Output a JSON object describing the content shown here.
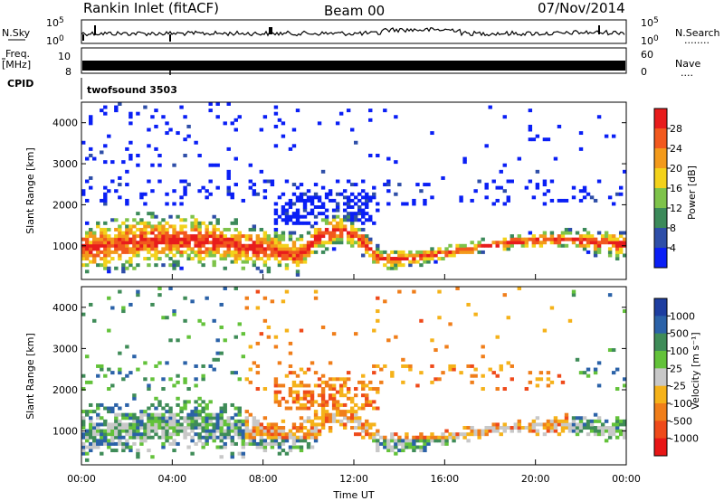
{
  "header": {
    "station": "Rankin Inlet (fitACF)",
    "beam": "Beam 00",
    "date": "07/Nov/2014"
  },
  "side_labels": {
    "nsky": "N.Sky",
    "nsearch": "N.Search",
    "nsearch_dots": "........",
    "freq": "Freq.",
    "freq_unit": "[MHz]",
    "nave": "Nave",
    "nave_dots": "....",
    "cpid": "CPID"
  },
  "top_panels": {
    "noise_ticks_left": [
      "10^5",
      "10^0"
    ],
    "noise_ticks_right": [
      "10^5",
      "10^0"
    ],
    "freq_ticks_left": [
      "10",
      "8"
    ],
    "nave_ticks_right": [
      "60",
      "0"
    ],
    "cpid_text": "twofsound 3503"
  },
  "chart_data": [
    {
      "type": "heatmap",
      "panel": "power",
      "ylabel": "Slant Range [km]",
      "y_ticks": [
        "1000",
        "2000",
        "3000",
        "4000"
      ],
      "ylim": [
        180,
        4500
      ],
      "colorbar_title": "Power [dB]",
      "colorbar_ticks": [
        "4",
        "8",
        "12",
        "16",
        "20",
        "24",
        "28"
      ],
      "colorbar_colors": [
        "#0a1ff5",
        "#2e4ea8",
        "#3c8a5a",
        "#7ec34a",
        "#f3d21b",
        "#f39a1b",
        "#f2591e",
        "#e81c1c"
      ]
    },
    {
      "type": "heatmap",
      "panel": "velocity",
      "ylabel": "Slant Range [km]",
      "y_ticks": [
        "1000",
        "2000",
        "3000",
        "4000"
      ],
      "ylim": [
        180,
        4500
      ],
      "xlabel": "Time UT",
      "x_ticks": [
        "00:00",
        "04:00",
        "08:00",
        "12:00",
        "16:00",
        "20:00",
        "00:00"
      ],
      "colorbar_title": "Velocity [m s⁻¹]",
      "colorbar_ticks": [
        "1000",
        "500",
        "100",
        "25",
        "-25",
        "-100",
        "-500",
        "-1000"
      ],
      "colorbar_colors": [
        "#1e3ea0",
        "#2b62a8",
        "#3f8c58",
        "#63c23a",
        "#c8c8c8",
        "#f5b21a",
        "#f07e1a",
        "#ef4a1a",
        "#e81616"
      ]
    }
  ]
}
